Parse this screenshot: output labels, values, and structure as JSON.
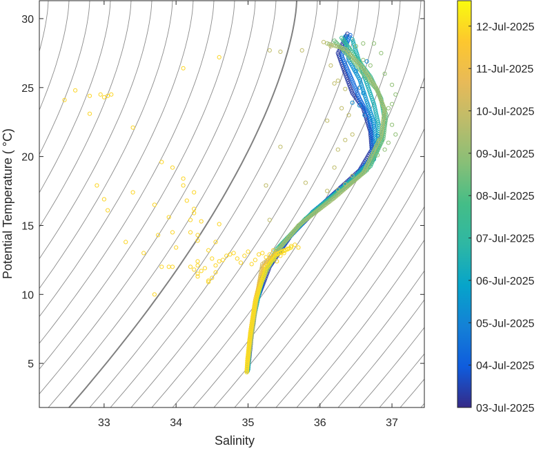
{
  "chart_data": {
    "type": "scatter",
    "title": "",
    "xlabel": "Salinity",
    "ylabel": "Potential Temperature ( °C)",
    "xlim": [
      32.1,
      37.45
    ],
    "ylim": [
      1.8,
      31.3
    ],
    "xticks": [
      33,
      34,
      35,
      36,
      37
    ],
    "yticks": [
      5,
      10,
      15,
      20,
      25,
      30
    ],
    "grid": false,
    "background_lines": "density isopleths (gray)",
    "colorbar": {
      "colormap": "parula",
      "ticks": [
        "03-Jul-2025",
        "04-Jul-2025",
        "05-Jul-2025",
        "06-Jul-2025",
        "07-Jul-2025",
        "08-Jul-2025",
        "09-Jul-2025",
        "10-Jul-2025",
        "11-Jul-2025",
        "12-Jul-2025"
      ],
      "range": [
        0.0,
        9.6
      ]
    },
    "profiles": [
      {
        "t": 0.3,
        "points": [
          [
            36.38,
            28.9
          ],
          [
            36.25,
            27.5
          ],
          [
            36.35,
            26.0
          ],
          [
            36.45,
            24.6
          ],
          [
            36.6,
            23.5
          ],
          [
            36.7,
            21.8
          ],
          [
            36.72,
            20.5
          ],
          [
            36.55,
            19.0
          ],
          [
            36.0,
            16.4
          ],
          [
            35.6,
            14.3
          ],
          [
            35.3,
            12.0
          ],
          [
            35.12,
            9.5
          ],
          [
            35.05,
            7.0
          ],
          [
            35.01,
            5.0
          ],
          [
            34.99,
            4.3
          ]
        ]
      },
      {
        "t": 1.3,
        "points": [
          [
            36.42,
            28.8
          ],
          [
            36.3,
            27.3
          ],
          [
            36.45,
            25.5
          ],
          [
            36.55,
            24.2
          ],
          [
            36.68,
            22.9
          ],
          [
            36.73,
            21.2
          ],
          [
            36.72,
            20.0
          ],
          [
            36.5,
            18.6
          ],
          [
            35.95,
            16.2
          ],
          [
            35.55,
            14.0
          ],
          [
            35.25,
            11.8
          ],
          [
            35.1,
            9.0
          ],
          [
            35.03,
            6.5
          ],
          [
            35.0,
            4.6
          ]
        ]
      },
      {
        "t": 2.4,
        "points": [
          [
            36.35,
            28.7
          ],
          [
            36.4,
            27.0
          ],
          [
            36.55,
            25.6
          ],
          [
            36.65,
            24.0
          ],
          [
            36.75,
            22.5
          ],
          [
            36.78,
            21.0
          ],
          [
            36.75,
            19.8
          ],
          [
            36.45,
            18.3
          ],
          [
            35.9,
            16.0
          ],
          [
            35.5,
            13.8
          ],
          [
            35.22,
            11.5
          ],
          [
            35.08,
            8.5
          ],
          [
            35.02,
            6.0
          ],
          [
            35.0,
            4.5
          ]
        ]
      },
      {
        "t": 3.4,
        "points": [
          [
            36.45,
            28.5
          ],
          [
            36.55,
            26.8
          ],
          [
            36.65,
            25.3
          ],
          [
            36.75,
            23.8
          ],
          [
            36.82,
            22.2
          ],
          [
            36.8,
            20.8
          ],
          [
            36.68,
            19.5
          ],
          [
            36.35,
            17.9
          ],
          [
            35.85,
            15.7
          ],
          [
            35.45,
            13.5
          ],
          [
            35.2,
            11.2
          ],
          [
            35.07,
            8.0
          ],
          [
            35.02,
            5.8
          ],
          [
            35.0,
            4.4
          ]
        ]
      },
      {
        "t": 4.4,
        "points": [
          [
            36.3,
            28.6
          ],
          [
            36.5,
            27.2
          ],
          [
            36.7,
            25.8
          ],
          [
            36.85,
            24.2
          ],
          [
            36.9,
            22.6
          ],
          [
            36.85,
            21.0
          ],
          [
            36.7,
            19.3
          ],
          [
            36.3,
            17.6
          ],
          [
            35.8,
            15.5
          ],
          [
            35.4,
            13.3
          ],
          [
            35.17,
            11.0
          ],
          [
            35.06,
            7.6
          ],
          [
            35.01,
            5.5
          ],
          [
            34.99,
            4.3
          ]
        ]
      },
      {
        "t": 5.4,
        "points": [
          [
            36.2,
            28.4
          ],
          [
            36.45,
            27.0
          ],
          [
            36.6,
            26.0
          ],
          [
            36.8,
            24.8
          ],
          [
            36.92,
            23.0
          ],
          [
            36.88,
            21.3
          ],
          [
            36.65,
            19.0
          ],
          [
            36.25,
            17.3
          ],
          [
            35.75,
            15.2
          ],
          [
            35.38,
            13.0
          ],
          [
            35.15,
            10.6
          ],
          [
            35.05,
            7.3
          ],
          [
            35.0,
            5.2
          ],
          [
            34.98,
            4.3
          ]
        ]
      },
      {
        "t": 6.3,
        "points": [
          [
            36.1,
            28.2
          ],
          [
            36.35,
            27.8
          ],
          [
            36.6,
            26.4
          ],
          [
            36.78,
            25.0
          ],
          [
            36.9,
            23.4
          ],
          [
            36.85,
            21.5
          ],
          [
            36.6,
            18.8
          ],
          [
            36.2,
            17.0
          ],
          [
            35.7,
            15.0
          ],
          [
            35.35,
            12.8
          ],
          [
            35.14,
            10.3
          ],
          [
            35.05,
            7.0
          ],
          [
            35.0,
            5.0
          ],
          [
            34.98,
            4.2
          ]
        ]
      },
      {
        "t": 7.3,
        "points": [
          [
            35.4,
            13.0
          ],
          [
            35.3,
            12.6
          ],
          [
            35.2,
            12.2
          ],
          [
            35.12,
            9.8
          ],
          [
            35.05,
            7.5
          ],
          [
            35.0,
            5.5
          ],
          [
            34.98,
            4.3
          ]
        ]
      },
      {
        "t": 8.3,
        "points": [
          [
            35.5,
            13.2
          ],
          [
            35.35,
            12.8
          ],
          [
            35.22,
            12.0
          ],
          [
            35.1,
            9.6
          ],
          [
            35.03,
            7.2
          ],
          [
            34.99,
            5.2
          ],
          [
            34.98,
            4.3
          ]
        ]
      },
      {
        "t": 9.2,
        "points": [
          [
            35.6,
            13.4
          ],
          [
            35.4,
            12.9
          ],
          [
            35.25,
            11.9
          ],
          [
            35.1,
            9.4
          ],
          [
            35.03,
            7.0
          ],
          [
            34.99,
            5.0
          ],
          [
            34.98,
            4.2
          ]
        ]
      }
    ],
    "scattered_points": [
      {
        "t": 8.9,
        "points": [
          [
            32.6,
            24.8
          ],
          [
            32.45,
            24.1
          ],
          [
            32.8,
            24.4
          ],
          [
            32.8,
            23.1
          ],
          [
            32.95,
            24.5
          ],
          [
            33.05,
            24.4
          ],
          [
            33.0,
            24.3
          ],
          [
            33.1,
            24.5
          ],
          [
            33.4,
            22.1
          ],
          [
            32.9,
            17.9
          ],
          [
            33.0,
            16.9
          ],
          [
            33.05,
            16.1
          ],
          [
            33.4,
            17.4
          ],
          [
            33.3,
            13.8
          ],
          [
            33.55,
            13.0
          ],
          [
            33.7,
            16.5
          ],
          [
            33.75,
            14.3
          ],
          [
            33.8,
            19.6
          ],
          [
            33.95,
            19.2
          ],
          [
            33.9,
            15.6
          ],
          [
            33.95,
            14.5
          ],
          [
            34.0,
            13.4
          ],
          [
            33.9,
            12.0
          ],
          [
            33.95,
            12.0
          ],
          [
            33.7,
            10.0
          ],
          [
            33.8,
            12.0
          ],
          [
            34.1,
            18.4
          ],
          [
            34.1,
            17.9
          ],
          [
            34.15,
            16.8
          ],
          [
            34.2,
            15.4
          ],
          [
            34.25,
            15.9
          ],
          [
            34.25,
            16.2
          ],
          [
            34.25,
            17.4
          ],
          [
            34.2,
            14.5
          ],
          [
            34.3,
            14.3
          ],
          [
            34.3,
            13.9
          ],
          [
            34.3,
            12.4
          ],
          [
            34.2,
            12.0
          ],
          [
            34.25,
            11.8
          ],
          [
            34.3,
            11.5
          ],
          [
            34.4,
            11.9
          ],
          [
            34.5,
            12.6
          ],
          [
            34.45,
            13.2
          ],
          [
            34.55,
            13.8
          ],
          [
            34.6,
            15.1
          ],
          [
            34.35,
            15.3
          ],
          [
            34.1,
            26.4
          ],
          [
            34.6,
            27.2
          ],
          [
            34.3,
            11.3
          ],
          [
            34.45,
            11.0
          ],
          [
            34.5,
            11.2
          ],
          [
            34.55,
            12.1
          ],
          [
            34.6,
            12.4
          ],
          [
            34.45,
            10.9
          ],
          [
            34.35,
            11.7
          ],
          [
            34.3,
            12.1
          ],
          [
            34.55,
            11.6
          ],
          [
            34.65,
            12.5
          ],
          [
            34.7,
            12.8
          ],
          [
            34.75,
            12.9
          ],
          [
            34.8,
            13.0
          ],
          [
            34.85,
            12.6
          ],
          [
            34.9,
            12.3
          ],
          [
            34.95,
            12.8
          ],
          [
            35.0,
            13.1
          ],
          [
            35.05,
            12.2
          ],
          [
            35.1,
            12.5
          ],
          [
            35.15,
            12.9
          ],
          [
            35.2,
            13.0
          ],
          [
            35.25,
            12.7
          ],
          [
            35.3,
            12.9
          ],
          [
            35.35,
            13.2
          ],
          [
            35.4,
            12.4
          ],
          [
            35.45,
            12.8
          ],
          [
            35.5,
            13.0
          ],
          [
            35.55,
            13.3
          ],
          [
            35.6,
            13.5
          ],
          [
            35.65,
            13.6
          ],
          [
            35.7,
            13.4
          ]
        ]
      },
      {
        "t": 6.8,
        "points": [
          [
            35.3,
            27.7
          ],
          [
            35.45,
            27.6
          ],
          [
            35.75,
            27.7
          ],
          [
            35.3,
            15.4
          ],
          [
            35.45,
            20.7
          ],
          [
            35.25,
            17.9
          ],
          [
            35.8,
            18.1
          ],
          [
            36.1,
            22.6
          ],
          [
            36.3,
            23.5
          ],
          [
            36.4,
            23.0
          ],
          [
            36.35,
            21.2
          ],
          [
            36.45,
            21.6
          ],
          [
            36.25,
            20.5
          ],
          [
            36.2,
            19.2
          ],
          [
            36.1,
            17.5
          ],
          [
            36.25,
            17.6
          ],
          [
            36.35,
            18.0
          ],
          [
            36.45,
            18.6
          ],
          [
            36.2,
            25.3
          ],
          [
            36.25,
            25.5
          ],
          [
            36.35,
            24.9
          ],
          [
            36.15,
            28.0
          ],
          [
            36.05,
            28.3
          ],
          [
            36.15,
            26.6
          ]
        ]
      },
      {
        "t": 5.9,
        "points": [
          [
            36.75,
            28.2
          ],
          [
            36.85,
            27.5
          ],
          [
            36.7,
            26.6
          ],
          [
            36.9,
            26.0
          ],
          [
            37.0,
            25.2
          ],
          [
            37.05,
            24.5
          ],
          [
            37.0,
            23.8
          ],
          [
            36.95,
            23.5
          ],
          [
            37.0,
            22.3
          ],
          [
            37.05,
            21.6
          ],
          [
            36.95,
            21.0
          ],
          [
            36.9,
            20.5
          ],
          [
            36.8,
            20.1
          ],
          [
            36.6,
            27.0
          ],
          [
            36.5,
            28.0
          ],
          [
            36.6,
            28.2
          ]
        ]
      },
      {
        "t": 2.2,
        "points": [
          [
            36.5,
            26.2
          ],
          [
            36.55,
            25.0
          ],
          [
            36.6,
            24.6
          ],
          [
            36.45,
            23.9
          ],
          [
            36.55,
            23.7
          ],
          [
            36.62,
            23.0
          ],
          [
            36.7,
            22.7
          ],
          [
            36.75,
            22.2
          ],
          [
            36.8,
            21.5
          ],
          [
            36.75,
            21.1
          ],
          [
            36.65,
            26.9
          ]
        ]
      }
    ]
  }
}
